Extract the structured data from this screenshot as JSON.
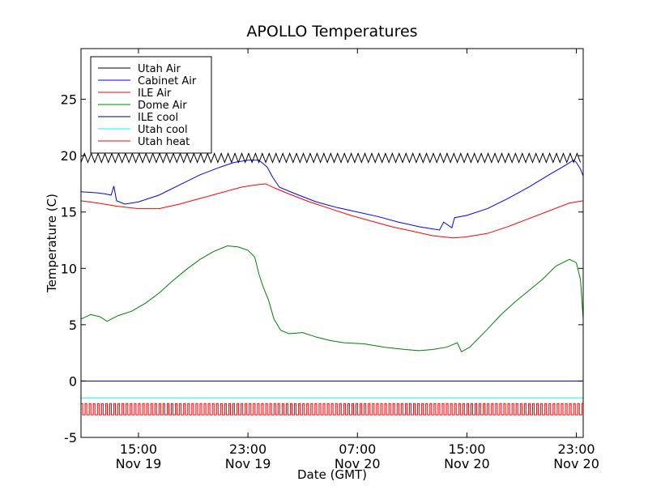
{
  "chart_data": {
    "type": "line",
    "title": "APOLLO Temperatures",
    "xlabel": "Date (GMT)",
    "ylabel": "Temperature (C)",
    "xlim_hours": [
      10.8,
      47.5
    ],
    "ylim": [
      -5,
      29.5
    ],
    "yticks": [
      -5,
      0,
      5,
      10,
      15,
      20,
      25
    ],
    "xticks": [
      {
        "hour": 15,
        "time": "15:00",
        "date": "Nov 19"
      },
      {
        "hour": 23,
        "time": "23:00",
        "date": "Nov 19"
      },
      {
        "hour": 31,
        "time": "07:00",
        "date": "Nov 20"
      },
      {
        "hour": 39,
        "time": "15:00",
        "date": "Nov 20"
      },
      {
        "hour": 47,
        "time": "23:00",
        "date": "Nov 20"
      }
    ],
    "legend_position": "top-left",
    "series": [
      {
        "name": "Utah Air",
        "color": "#000000",
        "style": "oscillating",
        "low": 19.4,
        "high": 20.2,
        "period_hours": 0.5,
        "x_start": 10.8,
        "x_end": 47.5
      },
      {
        "name": "Cabinet Air",
        "color": "#0000ff",
        "style": "line",
        "points": [
          [
            10.8,
            16.8
          ],
          [
            12.0,
            16.7
          ],
          [
            12.6,
            16.6
          ],
          [
            13.0,
            16.5
          ],
          [
            13.2,
            17.3
          ],
          [
            13.4,
            16.0
          ],
          [
            14.0,
            15.7
          ],
          [
            15.0,
            15.9
          ],
          [
            16.5,
            16.5
          ],
          [
            18.0,
            17.4
          ],
          [
            19.5,
            18.3
          ],
          [
            21.0,
            19.0
          ],
          [
            22.0,
            19.4
          ],
          [
            23.0,
            19.6
          ],
          [
            23.8,
            19.6
          ],
          [
            24.4,
            19.0
          ],
          [
            24.8,
            18.1
          ],
          [
            25.3,
            17.2
          ],
          [
            26.5,
            16.6
          ],
          [
            28.0,
            15.9
          ],
          [
            29.5,
            15.4
          ],
          [
            31.0,
            15.0
          ],
          [
            32.5,
            14.6
          ],
          [
            34.0,
            14.1
          ],
          [
            35.5,
            13.7
          ],
          [
            36.5,
            13.5
          ],
          [
            37.0,
            13.4
          ],
          [
            37.3,
            14.1
          ],
          [
            37.9,
            13.6
          ],
          [
            38.1,
            14.5
          ],
          [
            39.0,
            14.7
          ],
          [
            40.5,
            15.3
          ],
          [
            42.0,
            16.2
          ],
          [
            43.5,
            17.2
          ],
          [
            45.0,
            18.3
          ],
          [
            46.0,
            19.0
          ],
          [
            46.8,
            19.6
          ],
          [
            47.0,
            19.4
          ],
          [
            47.3,
            18.8
          ],
          [
            47.5,
            18.2
          ]
        ]
      },
      {
        "name": "ILE Air",
        "color": "#ff0000",
        "style": "line",
        "points": [
          [
            10.8,
            16.0
          ],
          [
            12.0,
            15.8
          ],
          [
            13.5,
            15.5
          ],
          [
            15.0,
            15.3
          ],
          [
            16.5,
            15.3
          ],
          [
            18.0,
            15.7
          ],
          [
            19.5,
            16.2
          ],
          [
            21.0,
            16.7
          ],
          [
            22.5,
            17.2
          ],
          [
            23.5,
            17.4
          ],
          [
            24.3,
            17.5
          ],
          [
            25.0,
            17.1
          ],
          [
            26.0,
            16.6
          ],
          [
            27.5,
            15.9
          ],
          [
            29.0,
            15.3
          ],
          [
            30.5,
            14.7
          ],
          [
            32.0,
            14.2
          ],
          [
            33.5,
            13.7
          ],
          [
            35.0,
            13.3
          ],
          [
            36.5,
            12.9
          ],
          [
            38.0,
            12.7
          ],
          [
            39.0,
            12.8
          ],
          [
            40.5,
            13.1
          ],
          [
            42.0,
            13.7
          ],
          [
            43.5,
            14.4
          ],
          [
            45.0,
            15.1
          ],
          [
            46.5,
            15.8
          ],
          [
            47.5,
            16.0
          ]
        ]
      },
      {
        "name": "Dome Air",
        "color": "#008000",
        "style": "line",
        "points": [
          [
            10.8,
            5.5
          ],
          [
            11.5,
            5.9
          ],
          [
            12.2,
            5.7
          ],
          [
            12.7,
            5.3
          ],
          [
            13.5,
            5.8
          ],
          [
            14.5,
            6.2
          ],
          [
            15.5,
            6.9
          ],
          [
            16.5,
            7.8
          ],
          [
            17.5,
            8.9
          ],
          [
            18.5,
            9.9
          ],
          [
            19.5,
            10.8
          ],
          [
            20.5,
            11.5
          ],
          [
            21.5,
            12.0
          ],
          [
            22.3,
            11.9
          ],
          [
            23.0,
            11.6
          ],
          [
            23.5,
            11.0
          ],
          [
            23.8,
            9.5
          ],
          [
            24.1,
            8.4
          ],
          [
            24.5,
            7.2
          ],
          [
            24.9,
            5.5
          ],
          [
            25.4,
            4.5
          ],
          [
            26.0,
            4.2
          ],
          [
            27.0,
            4.3
          ],
          [
            28.0,
            3.9
          ],
          [
            29.0,
            3.6
          ],
          [
            30.0,
            3.4
          ],
          [
            31.5,
            3.3
          ],
          [
            33.0,
            3.0
          ],
          [
            34.5,
            2.8
          ],
          [
            35.5,
            2.7
          ],
          [
            36.5,
            2.8
          ],
          [
            37.5,
            3.0
          ],
          [
            38.3,
            3.4
          ],
          [
            38.6,
            2.6
          ],
          [
            39.2,
            3.0
          ],
          [
            40.5,
            4.6
          ],
          [
            41.5,
            5.9
          ],
          [
            42.5,
            7.0
          ],
          [
            43.5,
            8.0
          ],
          [
            44.5,
            9.0
          ],
          [
            45.5,
            10.2
          ],
          [
            46.5,
            10.8
          ],
          [
            47.0,
            10.5
          ],
          [
            47.3,
            9.0
          ],
          [
            47.5,
            5.5
          ]
        ]
      },
      {
        "name": "ILE cool",
        "color": "#000080",
        "style": "constant",
        "value": 0.0,
        "x_start": 10.8,
        "x_end": 47.5
      },
      {
        "name": "Utah cool",
        "color": "#00ffff",
        "style": "constant",
        "value": -1.5,
        "x_start": 10.8,
        "x_end": 47.5
      },
      {
        "name": "Utah heat",
        "color": "#ff0000",
        "style": "pulse",
        "low": -3.0,
        "high": -2.0,
        "period_hours": 0.3,
        "x_start": 10.8,
        "x_end": 47.5
      }
    ]
  }
}
